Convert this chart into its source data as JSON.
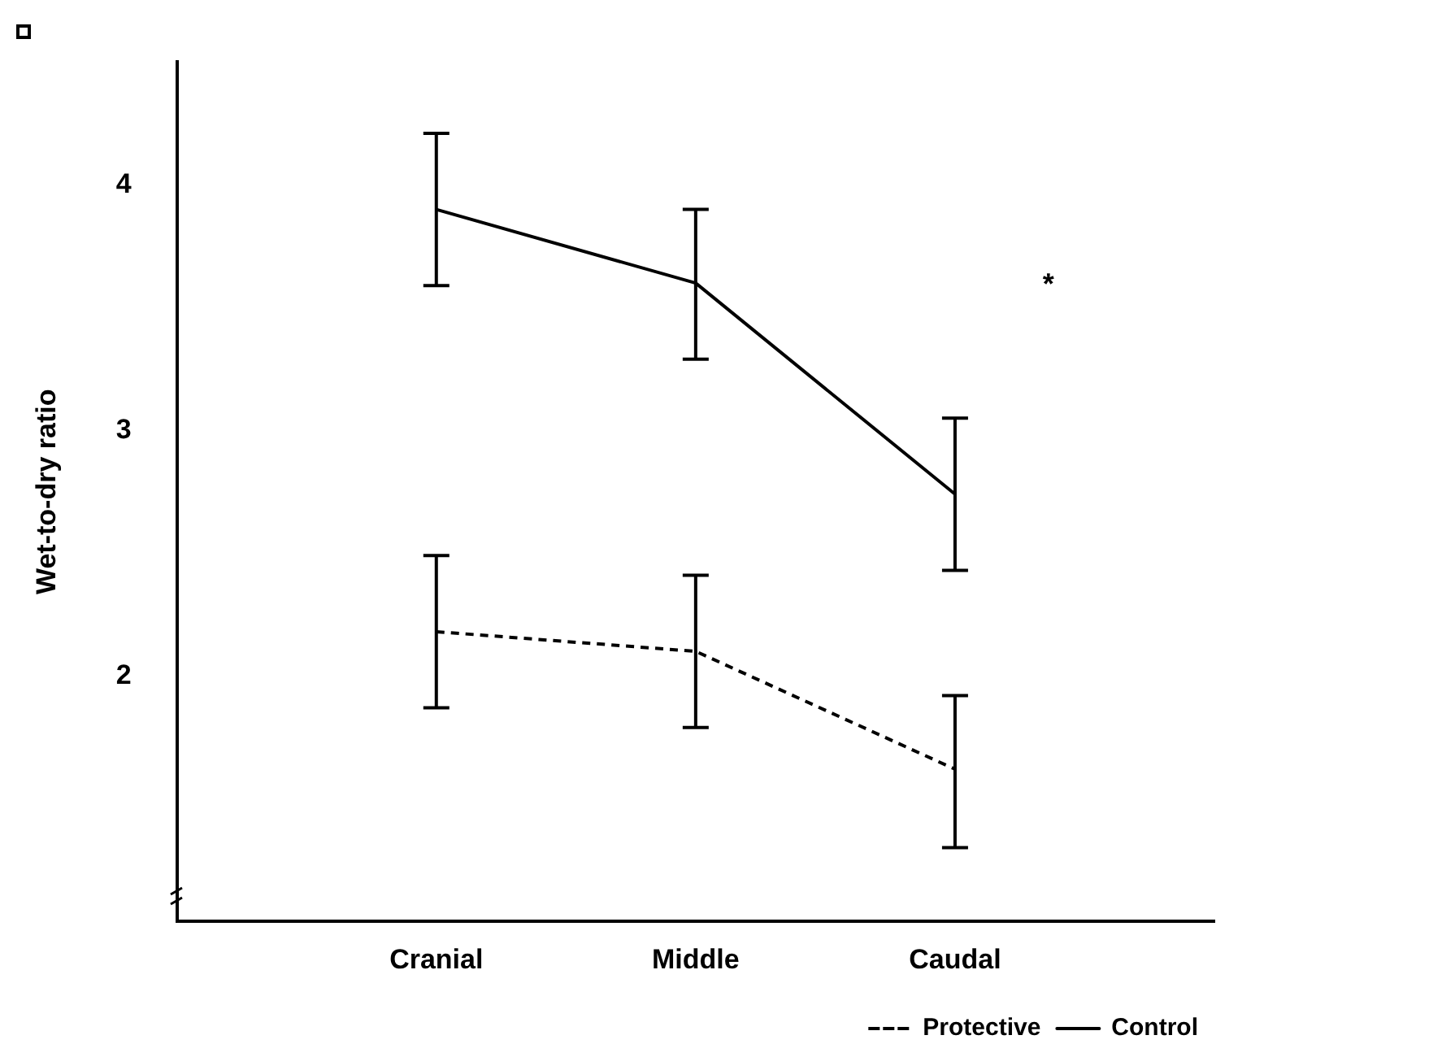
{
  "chart_data": {
    "type": "line",
    "ylabel": "Wet-to-dry ratio",
    "categories": [
      "Cranial",
      "Middle",
      "Caudal"
    ],
    "series": [
      {
        "name": "Protective",
        "color": "#000000",
        "line_style": "dashed",
        "values": [
          2.18,
          2.1,
          1.62
        ],
        "errors": [
          [
            1.87,
            2.49
          ],
          [
            1.79,
            2.41
          ],
          [
            1.3,
            1.92
          ]
        ]
      },
      {
        "name": "Control",
        "color": "#000000",
        "line_style": "solid",
        "values": [
          3.9,
          3.6,
          2.74
        ],
        "errors": [
          [
            3.59,
            4.21
          ],
          [
            3.29,
            3.9
          ],
          [
            2.43,
            3.05
          ]
        ]
      }
    ],
    "ylim": [
      1,
      4.5
    ],
    "yticks": [
      2,
      3,
      4
    ],
    "grid": false,
    "legend": "bottom right",
    "marker": "none",
    "annotations": [
      "*"
    ]
  }
}
